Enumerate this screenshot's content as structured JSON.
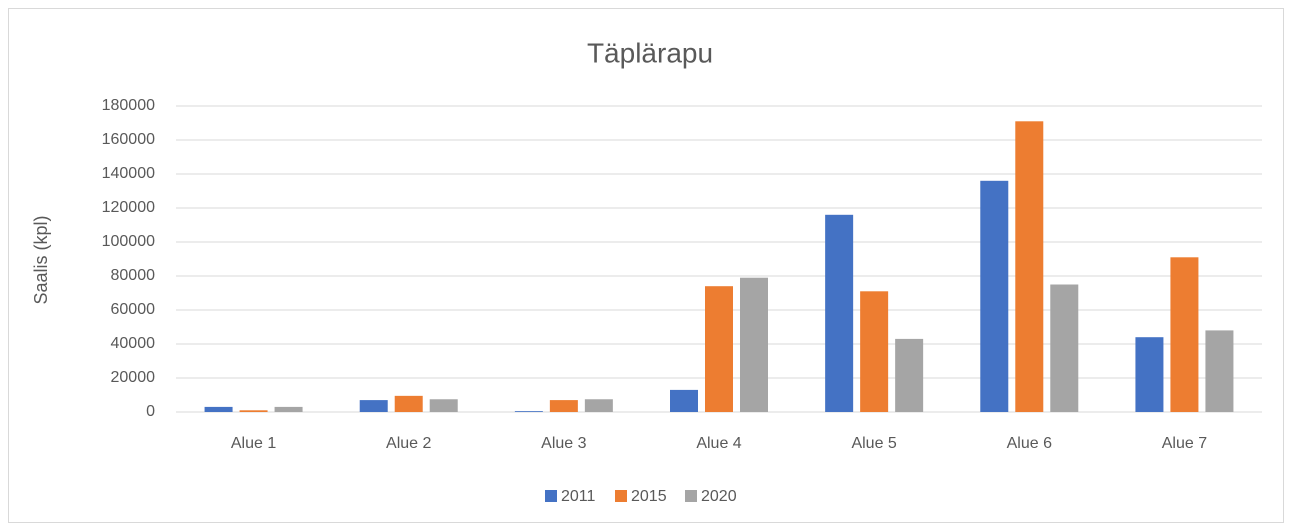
{
  "chart_data": {
    "type": "bar",
    "title": "Täplärapu",
    "y_label": "Saalis (kpl)",
    "categories": [
      "Alue 1",
      "Alue 2",
      "Alue 3",
      "Alue 4",
      "Alue 5",
      "Alue 6",
      "Alue 7"
    ],
    "series": [
      {
        "name": "2011",
        "color": "#4472c4",
        "values": [
          3000,
          7000,
          500,
          13000,
          116000,
          136000,
          44000
        ]
      },
      {
        "name": "2015",
        "color": "#ed7d31",
        "values": [
          1000,
          9500,
          7000,
          74000,
          71000,
          171000,
          91000
        ]
      },
      {
        "name": "2020",
        "color": "#a5a5a5",
        "values": [
          3000,
          7500,
          7500,
          79000,
          43000,
          75000,
          48000
        ]
      }
    ],
    "ylim": [
      0,
      180000
    ],
    "yticks": [
      0,
      20000,
      40000,
      60000,
      80000,
      100000,
      120000,
      140000,
      160000,
      180000
    ],
    "grid": true,
    "legend": "bottom"
  }
}
